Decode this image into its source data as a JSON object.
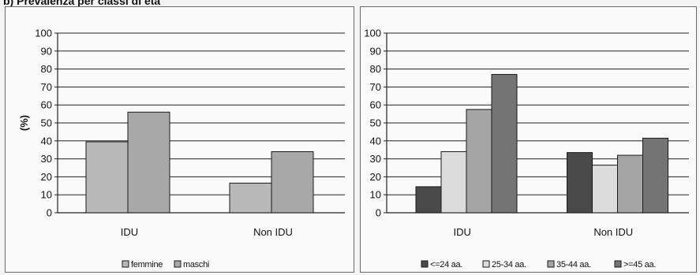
{
  "heading": "b) Prevalenza per classi di età",
  "charts": [
    {
      "type": "bar",
      "ylabel": "(%)",
      "ylim": [
        0,
        100
      ],
      "yticks": [
        "0",
        "10",
        "20",
        "30",
        "40",
        "50",
        "60",
        "70",
        "80",
        "90",
        "100"
      ],
      "grid": true,
      "legend_position": "bottom",
      "categories": [
        "IDU",
        "Non IDU"
      ],
      "series": [
        {
          "name": "femmine",
          "values": [
            39.5,
            16.5
          ],
          "color": "#b9b9b9"
        },
        {
          "name": "maschi",
          "values": [
            56,
            34
          ],
          "color": "#a8a8a8"
        }
      ]
    },
    {
      "type": "bar",
      "ylabel": "",
      "ylim": [
        0,
        100
      ],
      "yticks": [
        "0",
        "10",
        "20",
        "30",
        "40",
        "50",
        "60",
        "70",
        "80",
        "90",
        "100"
      ],
      "grid": true,
      "legend_position": "bottom",
      "categories": [
        "IDU",
        "Non IDU"
      ],
      "series": [
        {
          "name": "<=24 aa.",
          "values": [
            14.5,
            33.5
          ],
          "color": "#4a4a4a"
        },
        {
          "name": "25-34 aa.",
          "values": [
            34,
            26.5
          ],
          "color": "#dcdcdc"
        },
        {
          "name": "35-44 aa.",
          "values": [
            57.5,
            32
          ],
          "color": "#a5a5a5"
        },
        {
          "name": ">=45 aa.",
          "values": [
            77,
            41.5
          ],
          "color": "#747474"
        }
      ]
    }
  ],
  "chart_data": [
    {
      "type": "bar",
      "categories": [
        "IDU",
        "Non IDU"
      ],
      "series": [
        {
          "name": "femmine",
          "values": [
            39.5,
            16.5
          ]
        },
        {
          "name": "maschi",
          "values": [
            56,
            34
          ]
        }
      ],
      "ylabel": "(%)",
      "ylim": [
        0,
        100
      ],
      "grid": true,
      "legend": "bottom"
    },
    {
      "type": "bar",
      "categories": [
        "IDU",
        "Non IDU"
      ],
      "series": [
        {
          "name": "<=24 aa.",
          "values": [
            14.5,
            33.5
          ]
        },
        {
          "name": "25-34 aa.",
          "values": [
            34,
            26.5
          ]
        },
        {
          "name": "35-44 aa.",
          "values": [
            57.5,
            32
          ]
        },
        {
          "name": ">=45 aa.",
          "values": [
            77,
            41.5
          ]
        }
      ],
      "ylim": [
        0,
        100
      ],
      "grid": true,
      "legend": "bottom"
    }
  ]
}
